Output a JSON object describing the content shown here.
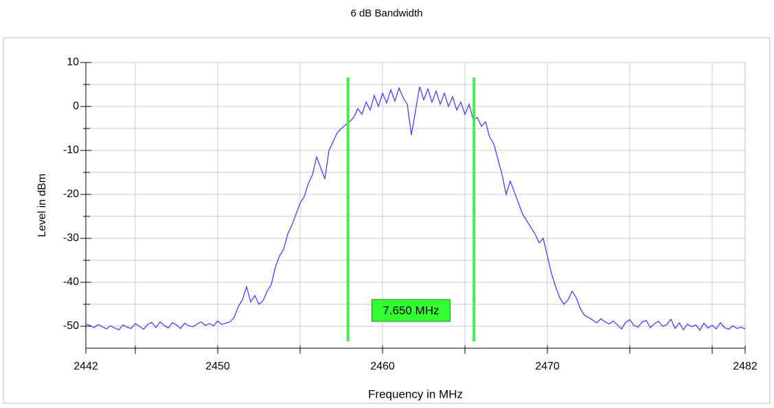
{
  "chart_data": {
    "type": "line",
    "title": "6 dB Bandwidth",
    "xlabel": "Frequency in MHz",
    "ylabel": "Level in dBm",
    "color": "#4040ff",
    "x": [
      2442,
      2442.25,
      2442.5,
      2442.75,
      2443,
      2443.25,
      2443.5,
      2443.75,
      2444,
      2444.25,
      2444.5,
      2444.75,
      2445,
      2445.25,
      2445.5,
      2445.75,
      2446,
      2446.25,
      2446.5,
      2446.75,
      2447,
      2447.25,
      2447.5,
      2447.75,
      2448,
      2448.25,
      2448.5,
      2448.75,
      2449,
      2449.25,
      2449.5,
      2449.75,
      2450,
      2450.25,
      2450.5,
      2450.75,
      2451,
      2451.25,
      2451.5,
      2451.75,
      2452,
      2452.25,
      2452.5,
      2452.75,
      2453,
      2453.25,
      2453.5,
      2453.75,
      2454,
      2454.25,
      2454.5,
      2454.75,
      2455,
      2455.25,
      2455.5,
      2455.75,
      2456,
      2456.25,
      2456.5,
      2456.75,
      2457,
      2457.25,
      2457.5,
      2457.75,
      2458,
      2458.25,
      2458.5,
      2458.75,
      2459,
      2459.25,
      2459.5,
      2459.75,
      2460,
      2460.25,
      2460.5,
      2460.75,
      2461,
      2461.25,
      2461.5,
      2461.75,
      2462,
      2462.25,
      2462.5,
      2462.75,
      2463,
      2463.25,
      2463.5,
      2463.75,
      2464,
      2464.25,
      2464.5,
      2464.75,
      2465,
      2465.25,
      2465.5,
      2465.75,
      2466,
      2466.25,
      2466.5,
      2466.75,
      2467,
      2467.25,
      2467.5,
      2467.75,
      2468,
      2468.25,
      2468.5,
      2468.75,
      2469,
      2469.25,
      2469.5,
      2469.75,
      2470,
      2470.25,
      2470.5,
      2470.75,
      2471,
      2471.25,
      2471.5,
      2471.75,
      2472,
      2472.25,
      2472.5,
      2472.75,
      2473,
      2473.25,
      2473.5,
      2473.75,
      2474,
      2474.25,
      2474.5,
      2474.75,
      2475,
      2475.25,
      2475.5,
      2475.75,
      2476,
      2476.25,
      2476.5,
      2476.75,
      2477,
      2477.25,
      2477.5,
      2477.75,
      2478,
      2478.25,
      2478.5,
      2478.75,
      2479,
      2479.25,
      2479.5,
      2479.75,
      2480,
      2480.25,
      2480.5,
      2480.75,
      2481,
      2481.25,
      2481.5,
      2481.75,
      2482
    ],
    "values": [
      -49.5,
      -49.8,
      -50.3,
      -49.6,
      -50.1,
      -50.6,
      -49.9,
      -50.4,
      -50.8,
      -49.7,
      -50.2,
      -50.5,
      -49.4,
      -50.0,
      -50.7,
      -49.6,
      -49.1,
      -50.3,
      -49.0,
      -49.8,
      -50.4,
      -49.2,
      -49.7,
      -50.5,
      -49.3,
      -49.9,
      -50.1,
      -49.5,
      -49.0,
      -49.8,
      -49.4,
      -49.9,
      -48.8,
      -49.6,
      -49.3,
      -49.0,
      -48.0,
      -45.5,
      -44.0,
      -41.0,
      -44.5,
      -43.0,
      -45.0,
      -44.2,
      -42.0,
      -40.5,
      -36.5,
      -34.0,
      -32.5,
      -29.0,
      -27.0,
      -24.5,
      -22.0,
      -20.5,
      -17.5,
      -15.5,
      -11.5,
      -14.0,
      -16.5,
      -10.0,
      -8.0,
      -6.0,
      -5.0,
      -4.2,
      -3.5,
      -2.5,
      -0.5,
      -1.8,
      1.0,
      -0.8,
      2.5,
      0.0,
      3.0,
      0.8,
      3.8,
      1.2,
      4.2,
      2.0,
      0.5,
      -6.5,
      -1.0,
      4.5,
      1.5,
      4.0,
      1.0,
      3.5,
      0.5,
      3.0,
      0.0,
      2.2,
      -0.8,
      1.0,
      -1.8,
      0.5,
      -3.0,
      -2.5,
      -4.5,
      -3.5,
      -7.0,
      -8.5,
      -12.0,
      -15.5,
      -20.0,
      -17.0,
      -19.5,
      -22.0,
      -24.5,
      -26.0,
      -27.5,
      -29.0,
      -31.0,
      -30.0,
      -34.0,
      -38.0,
      -41.0,
      -43.5,
      -45.0,
      -44.0,
      -42.0,
      -43.5,
      -46.0,
      -47.5,
      -48.0,
      -48.6,
      -49.2,
      -48.3,
      -49.0,
      -49.5,
      -48.8,
      -49.7,
      -50.6,
      -49.1,
      -48.5,
      -49.8,
      -50.2,
      -49.0,
      -48.7,
      -50.3,
      -49.4,
      -48.9,
      -50.0,
      -49.6,
      -48.4,
      -50.5,
      -49.2,
      -50.8,
      -49.5,
      -50.1,
      -49.7,
      -50.9,
      -49.3,
      -50.4,
      -49.8,
      -50.6,
      -49.2,
      -50.3,
      -50.7,
      -49.9,
      -50.5,
      -50.2,
      -50.6
    ],
    "xlim": [
      2442,
      2482
    ],
    "ylim": [
      -55,
      10
    ],
    "xticks": [
      2442,
      2450,
      2460,
      2470,
      2482
    ],
    "x_grid": [
      2445,
      2450,
      2455,
      2460,
      2465,
      2470,
      2475,
      2480
    ],
    "yticks": [
      -50,
      -40,
      -30,
      -20,
      -10,
      0,
      10
    ],
    "y_minor_ticks": [
      -45,
      -35,
      -25,
      -15,
      -5,
      5
    ],
    "grid": true,
    "markers": [
      2457.9,
      2465.55
    ],
    "marker_color": "#44ee44",
    "annotation": "7.650 MHz"
  }
}
